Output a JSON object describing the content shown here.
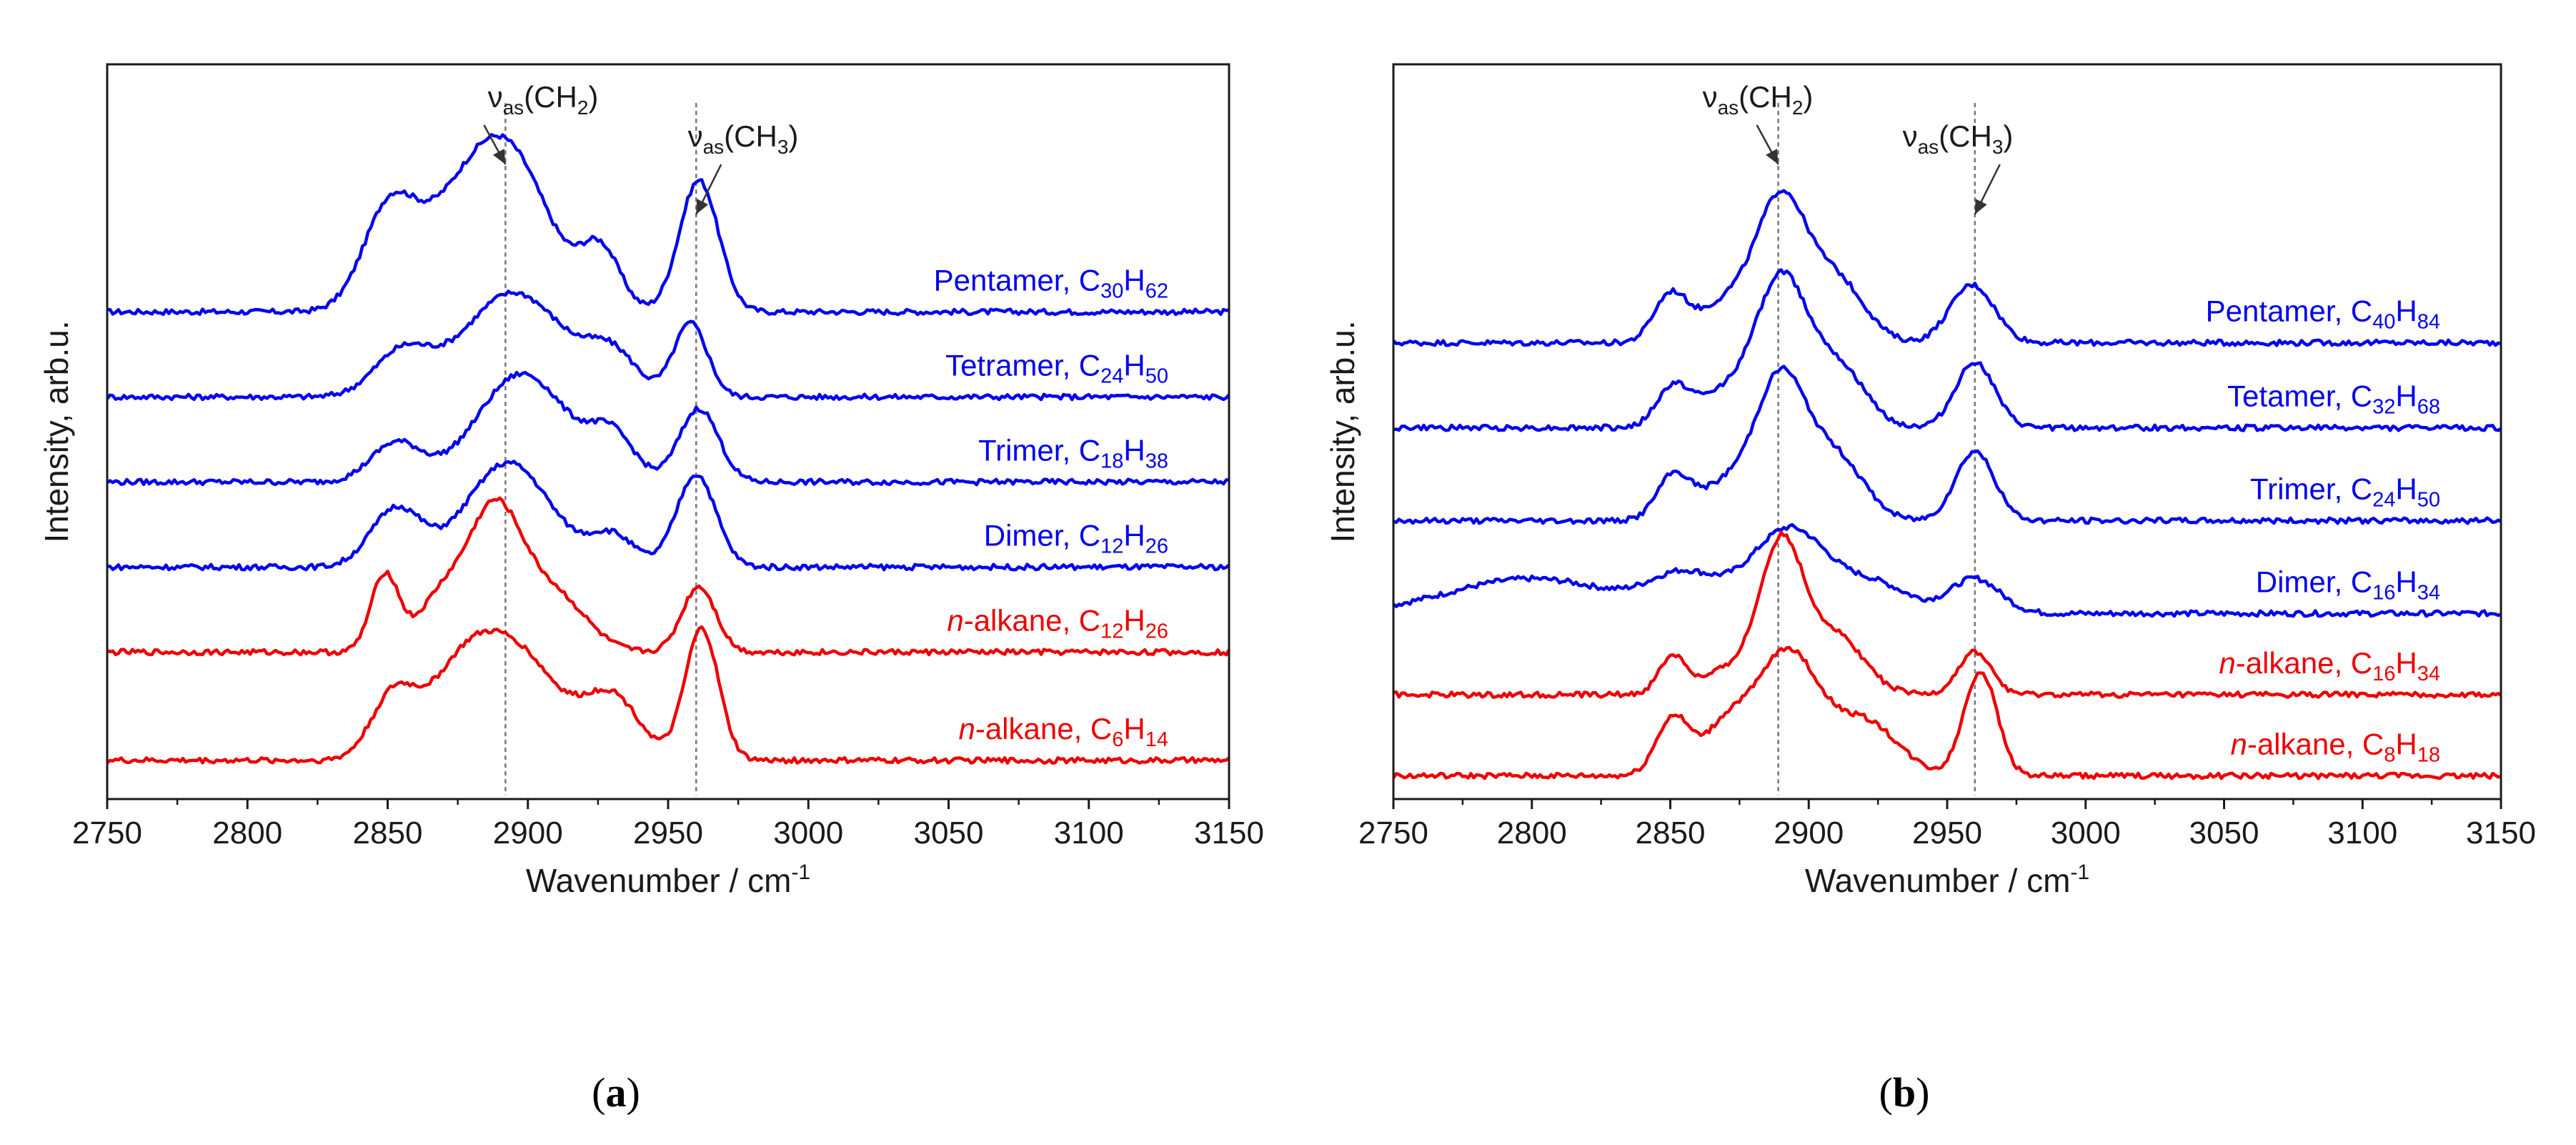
{
  "chart_data": [
    {
      "panel": "a",
      "type": "line",
      "xlabel": "Wavenumber / cm",
      "xlabel_sup": "-1",
      "ylabel": "Intensity, arb.u.",
      "xlim": [
        2750,
        3150
      ],
      "xticks": [
        2750,
        2800,
        2850,
        2900,
        2950,
        3000,
        3050,
        3100,
        3150
      ],
      "ylim": [
        0,
        9.5
      ],
      "yticks_shown": false,
      "annotations": [
        {
          "prefix": "ν",
          "sub": "as",
          "group": "(CH",
          "sub2": "2",
          "close": ")",
          "x": 2892
        },
        {
          "prefix": "ν",
          "sub": "as",
          "group": "(CH",
          "sub2": "3",
          "close": ")",
          "x": 2960
        }
      ],
      "reference_lines_x": [
        2892,
        2960
      ],
      "series": [
        {
          "name_main": "Pentamer, C",
          "n1": "30",
          "h": "H",
          "n2": "62",
          "italic_prefix": "",
          "color": "#0000ee",
          "offset": 6.3,
          "peaks": [
            [
              2850,
              1.05,
              9
            ],
            [
              2870,
              0.9,
              16
            ],
            [
              2893,
              1.9,
              15
            ],
            [
              2926,
              0.75,
              7
            ],
            [
              2961,
              1.7,
              7
            ]
          ]
        },
        {
          "name_main": "Tetramer, C",
          "n1": "24",
          "h": "H",
          "n2": "50",
          "italic_prefix": "",
          "color": "#0000ee",
          "offset": 5.2,
          "peaks": [
            [
              2855,
              0.55,
              10
            ],
            [
              2895,
              1.35,
              18
            ],
            [
              2930,
              0.5,
              9
            ],
            [
              2958,
              0.95,
              6
            ]
          ]
        },
        {
          "name_main": "Trimer, C",
          "n1": "18",
          "h": "H",
          "n2": "38",
          "italic_prefix": "",
          "color": "#0000ee",
          "offset": 4.1,
          "peaks": [
            [
              2853,
              0.5,
              9
            ],
            [
              2898,
              1.4,
              16
            ],
            [
              2930,
              0.55,
              8
            ],
            [
              2961,
              0.95,
              7
            ]
          ]
        },
        {
          "name_main": "Dimer, C",
          "n1": "12",
          "h": "H",
          "n2": "26",
          "italic_prefix": "",
          "color": "#0000ee",
          "offset": 3.0,
          "peaks": [
            [
              2853,
              0.75,
              9
            ],
            [
              2893,
              1.35,
              15
            ],
            [
              2930,
              0.4,
              8
            ],
            [
              2960,
              1.2,
              7
            ]
          ]
        },
        {
          "name_main": "-alkane, C",
          "n1": "12",
          "h": "H",
          "n2": "26",
          "italic_prefix": "n",
          "color": "#ee0000",
          "offset": 1.9,
          "peaks": [
            [
              2849,
              1.0,
              5
            ],
            [
              2868,
              0.6,
              8
            ],
            [
              2888,
              1.85,
              10
            ],
            [
              2910,
              0.7,
              11
            ],
            [
              2961,
              0.85,
              6
            ]
          ]
        },
        {
          "name_main": "-alkane, C",
          "n1": "6",
          "h": "H",
          "n2": "14",
          "italic_prefix": "n",
          "color": "#ee0000",
          "offset": 0.5,
          "peaks": [
            [
              2852,
              0.8,
              8
            ],
            [
              2875,
              0.9,
              12
            ],
            [
              2896,
              1.35,
              15
            ],
            [
              2930,
              0.8,
              10
            ],
            [
              2962,
              1.7,
              6
            ]
          ]
        }
      ]
    },
    {
      "panel": "b",
      "type": "line",
      "xlabel": "Wavenumber / cm",
      "xlabel_sup": "-1",
      "ylabel": "Intensity, arb.u.",
      "xlim": [
        2750,
        3150
      ],
      "xticks": [
        2750,
        2800,
        2850,
        2900,
        2950,
        3000,
        3050,
        3100,
        3150
      ],
      "ylim": [
        0,
        9.5
      ],
      "yticks_shown": false,
      "annotations": [
        {
          "prefix": "ν",
          "sub": "as",
          "group": "(CH",
          "sub2": "2",
          "close": ")",
          "x": 2889
        },
        {
          "prefix": "ν",
          "sub": "as",
          "group": "(CH",
          "sub2": "3",
          "close": ")",
          "x": 2960
        }
      ],
      "reference_lines_x": [
        2889,
        2960
      ],
      "series": [
        {
          "name_main": "Pentamer, C",
          "n1": "40",
          "h": "H",
          "n2": "84",
          "italic_prefix": "",
          "color": "#0000ee",
          "offset": 5.9,
          "peaks": [
            [
              2850,
              0.6,
              6
            ],
            [
              2870,
              0.5,
              10
            ],
            [
              2890,
              1.8,
              9
            ],
            [
              2910,
              0.8,
              10
            ],
            [
              2959,
              0.75,
              8
            ]
          ]
        },
        {
          "name_main": "Tetamer, C",
          "n1": "32",
          "h": "H",
          "n2": "68",
          "italic_prefix": "",
          "color": "#0000ee",
          "offset": 4.8,
          "peaks": [
            [
              2851,
              0.5,
              6
            ],
            [
              2870,
              0.45,
              10
            ],
            [
              2890,
              1.85,
              9
            ],
            [
              2910,
              0.8,
              10
            ],
            [
              2960,
              0.85,
              7
            ]
          ]
        },
        {
          "name_main": "Trimer, C",
          "n1": "24",
          "h": "H",
          "n2": "50",
          "italic_prefix": "",
          "color": "#0000ee",
          "offset": 3.6,
          "peaks": [
            [
              2851,
              0.55,
              6
            ],
            [
              2870,
              0.45,
              10
            ],
            [
              2890,
              1.8,
              9
            ],
            [
              2910,
              0.8,
              10
            ],
            [
              2960,
              0.9,
              7
            ]
          ]
        },
        {
          "name_main": "Dimer, C",
          "n1": "16",
          "h": "H",
          "n2": "34",
          "italic_prefix": "",
          "color": "#0000ee",
          "offset": 2.4,
          "peaks": [
            [
              2800,
              0.45,
              30
            ],
            [
              2855,
              0.45,
              12
            ],
            [
              2893,
              1.1,
              14
            ],
            [
              2925,
              0.35,
              12
            ],
            [
              2960,
              0.45,
              9
            ]
          ]
        },
        {
          "name_main": "-alkane, C",
          "n1": "16",
          "h": "H",
          "n2": "34",
          "italic_prefix": "n",
          "color": "#ee0000",
          "offset": 1.35,
          "peaks": [
            [
              2851,
              0.5,
              5
            ],
            [
              2870,
              0.3,
              8
            ],
            [
              2890,
              1.95,
              8
            ],
            [
              2910,
              0.75,
              10
            ],
            [
              2960,
              0.55,
              6
            ]
          ]
        },
        {
          "name_main": "-alkane, C",
          "n1": "8",
          "h": "H",
          "n2": "18",
          "italic_prefix": "n",
          "color": "#ee0000",
          "offset": 0.3,
          "peaks": [
            [
              2851,
              0.75,
              6
            ],
            [
              2870,
              0.6,
              8
            ],
            [
              2892,
              1.6,
              11
            ],
            [
              2920,
              0.7,
              12
            ],
            [
              2962,
              1.35,
              6
            ]
          ]
        }
      ]
    }
  ],
  "panel_labels": [
    {
      "open": "(",
      "letter": "a",
      "close": ")"
    },
    {
      "open": "(",
      "letter": "b",
      "close": ")"
    }
  ],
  "colors": {
    "blue": "#0000ee",
    "red": "#ee0000",
    "axis": "#1a1a1a",
    "refline": "#777777"
  }
}
